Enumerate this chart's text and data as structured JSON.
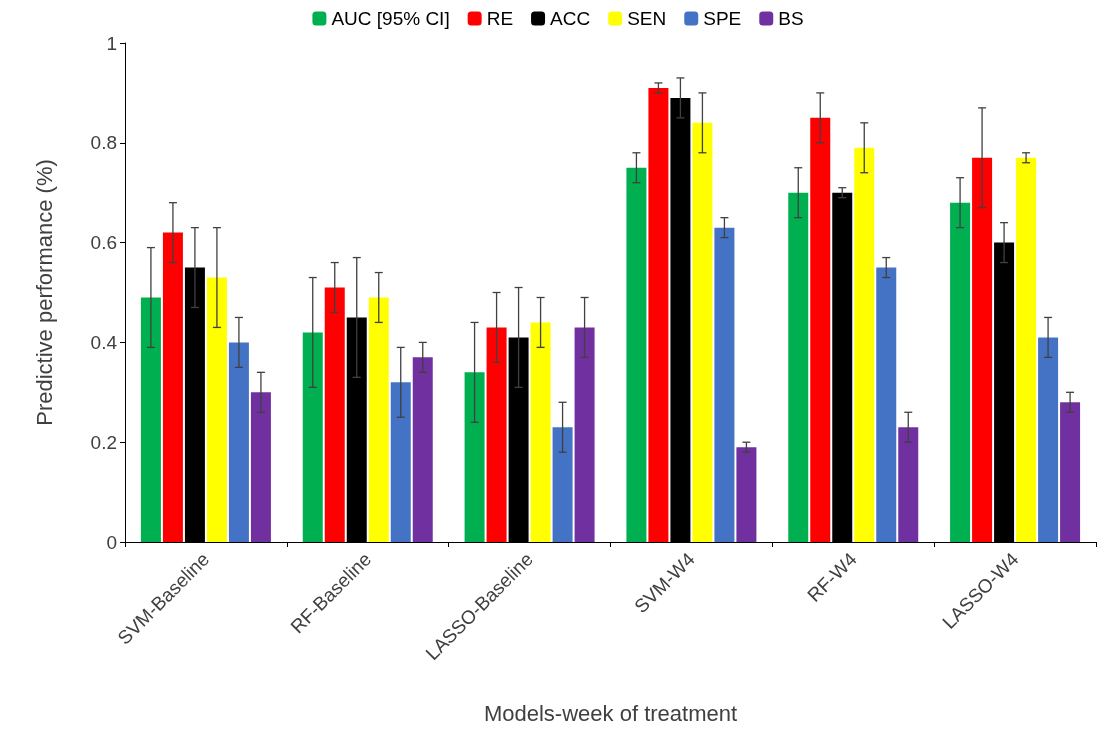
{
  "chart_data": {
    "type": "bar",
    "xlabel": "Models-week of treatment",
    "ylabel": "Predictive performance (%)",
    "categories": [
      "SVM-Baseline",
      "RF-Baseline",
      "LASSO-Baseline",
      "SVM-W4",
      "RF-W4",
      "LASSO-W4"
    ],
    "series": [
      {
        "name": "AUC [95% CI]",
        "color": "#00b050",
        "values": [
          0.49,
          0.42,
          0.34,
          0.75,
          0.7,
          0.68
        ],
        "errors": [
          0.1,
          0.11,
          0.1,
          0.03,
          0.05,
          0.05
        ]
      },
      {
        "name": "RE",
        "color": "#ff0000",
        "values": [
          0.62,
          0.51,
          0.43,
          0.91,
          0.85,
          0.77
        ],
        "errors": [
          0.06,
          0.05,
          0.07,
          0.01,
          0.05,
          0.1
        ]
      },
      {
        "name": "ACC",
        "color": "#000000",
        "values": [
          0.55,
          0.45,
          0.41,
          0.89,
          0.7,
          0.6
        ],
        "errors": [
          0.08,
          0.12,
          0.1,
          0.04,
          0.01,
          0.04
        ]
      },
      {
        "name": "SEN",
        "color": "#ffff00",
        "values": [
          0.53,
          0.49,
          0.44,
          0.84,
          0.79,
          0.77
        ],
        "errors": [
          0.1,
          0.05,
          0.05,
          0.06,
          0.05,
          0.01
        ]
      },
      {
        "name": "SPE",
        "color": "#4472c4",
        "values": [
          0.4,
          0.32,
          0.23,
          0.63,
          0.55,
          0.41
        ],
        "errors": [
          0.05,
          0.07,
          0.05,
          0.02,
          0.02,
          0.04
        ]
      },
      {
        "name": "BS",
        "color": "#7030a0",
        "values": [
          0.3,
          0.37,
          0.43,
          0.19,
          0.23,
          0.28
        ],
        "errors": [
          0.04,
          0.03,
          0.06,
          0.01,
          0.03,
          0.02
        ]
      }
    ],
    "ylim": [
      0,
      1
    ],
    "yticks": [
      0,
      0.2,
      0.4,
      0.6,
      0.8,
      1
    ],
    "grid": false,
    "legend": "top"
  }
}
